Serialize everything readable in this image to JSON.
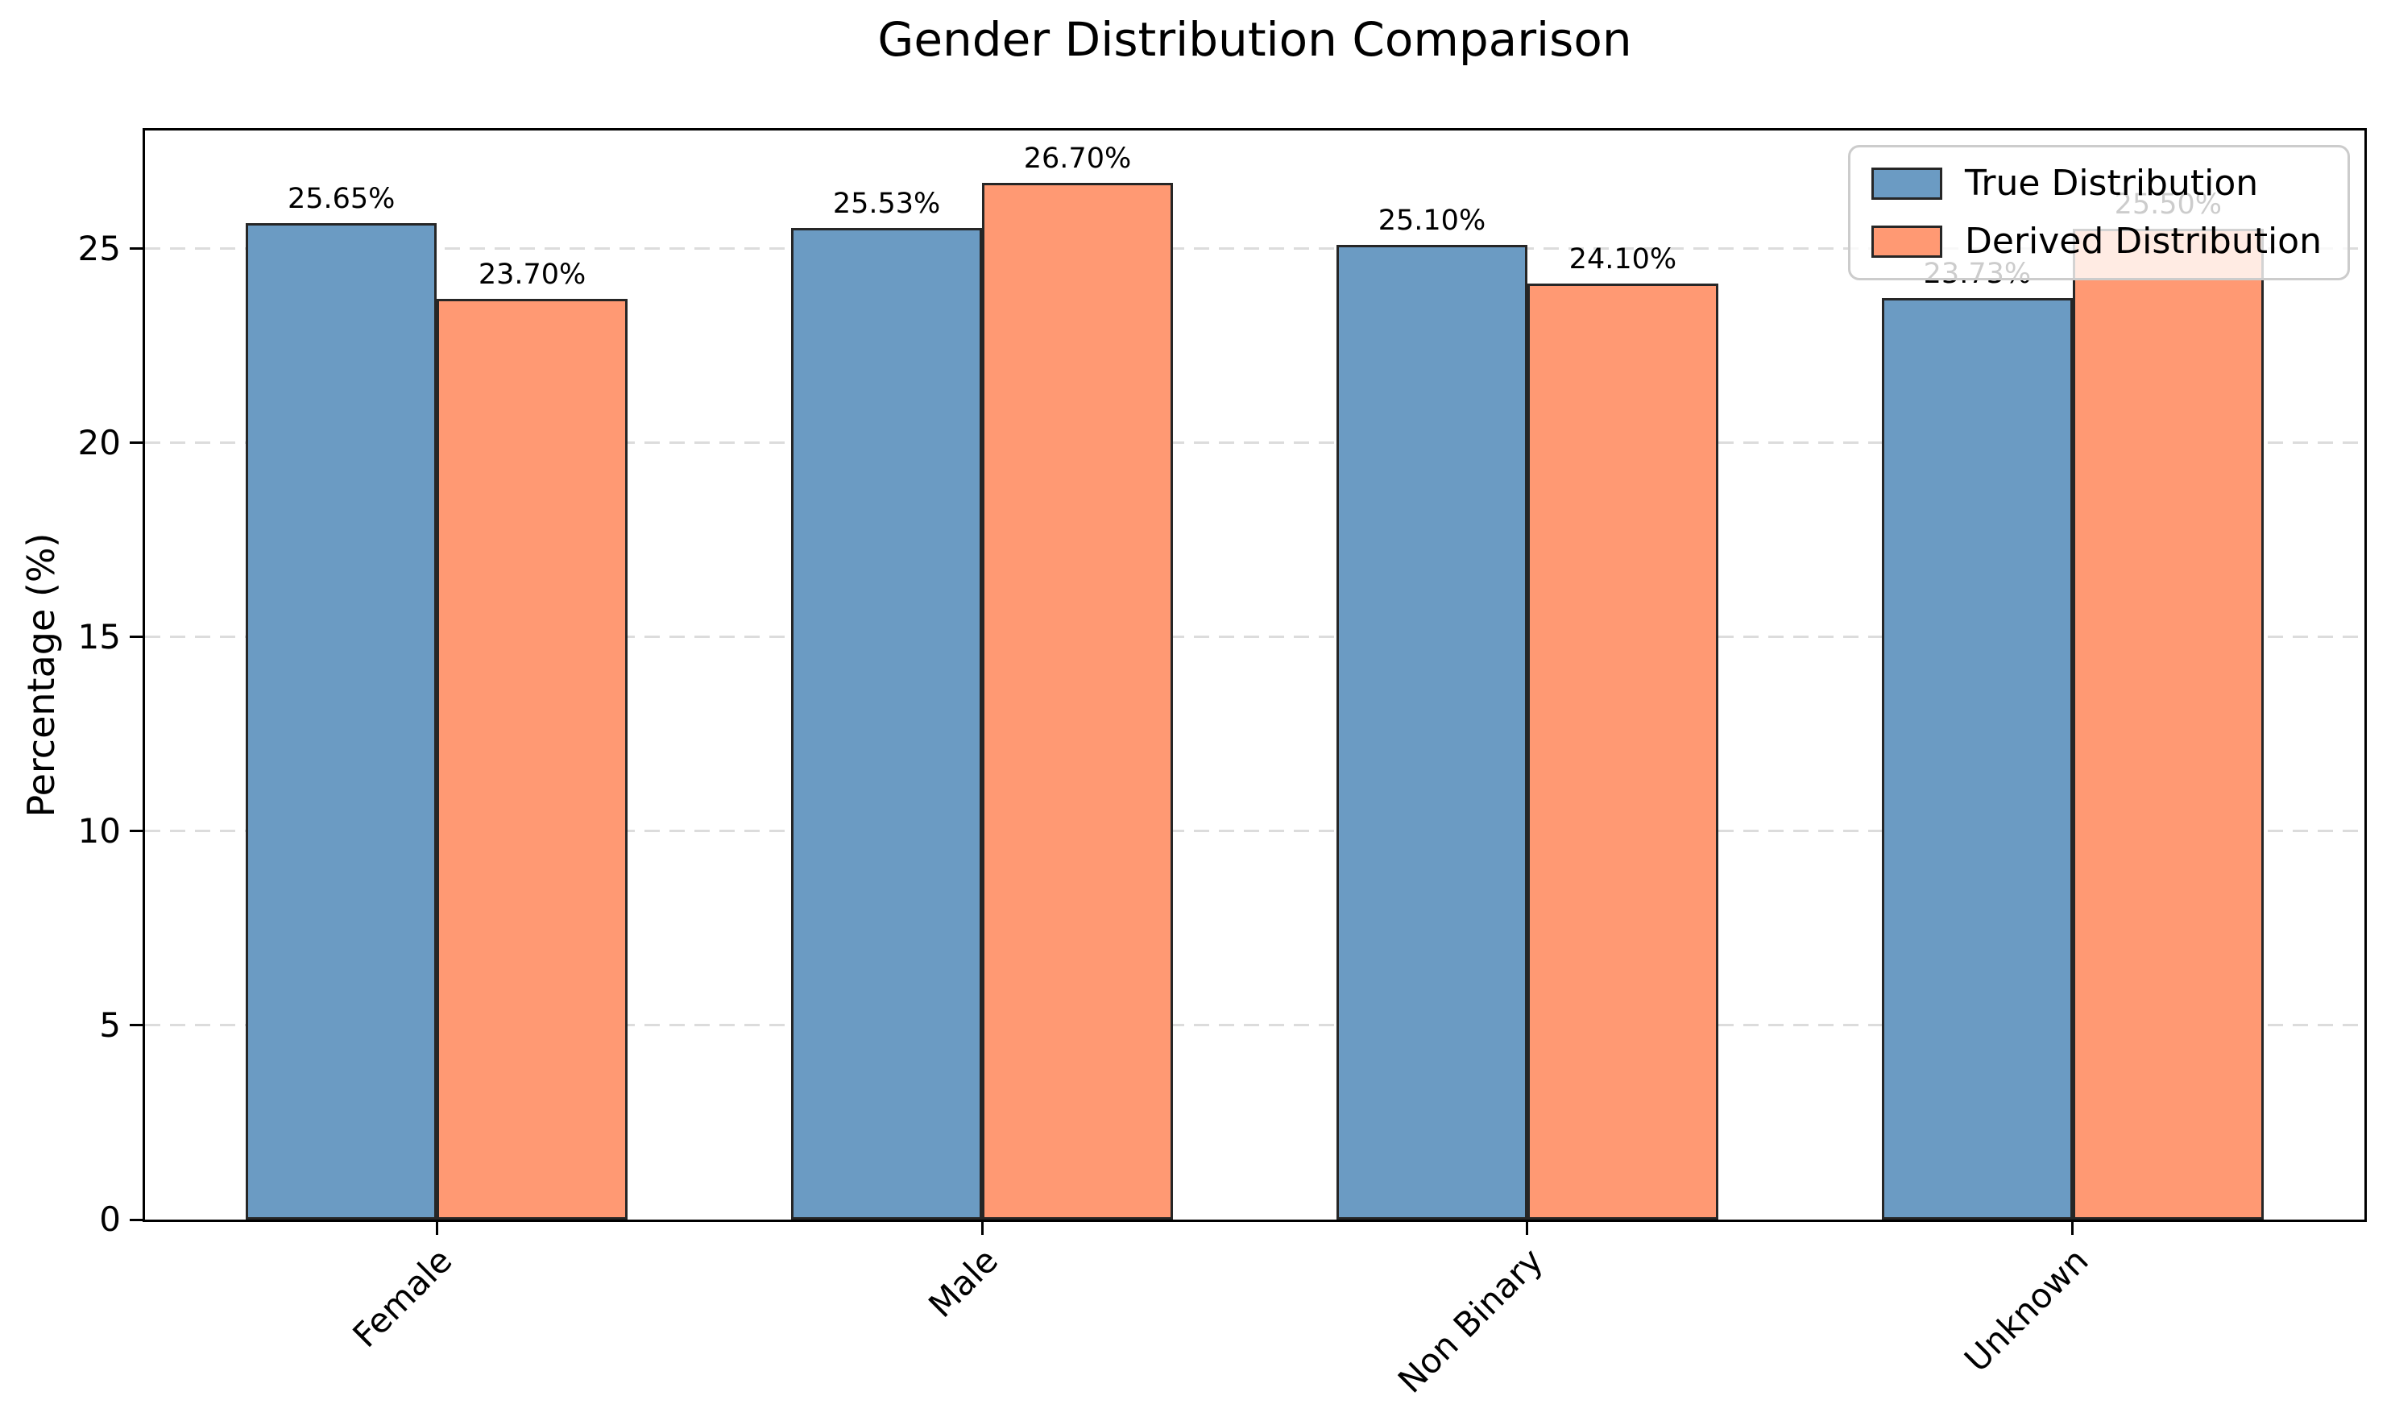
{
  "title": "Gender Distribution Comparison",
  "chart_data": {
    "type": "bar",
    "title": "Gender Distribution Comparison",
    "categories": [
      "Female",
      "Male",
      "Non Binary",
      "Unknown"
    ],
    "series": [
      {
        "name": "True Distribution",
        "color": "#6B9BC3",
        "values": [
          25.65,
          25.53,
          25.1,
          23.73
        ],
        "bar_labels": [
          "25.65%",
          "25.53%",
          "25.10%",
          "23.73%"
        ]
      },
      {
        "name": "Derived Distribution",
        "color": "#FF9973",
        "values": [
          23.7,
          26.7,
          24.1,
          25.5
        ],
        "bar_labels": [
          "23.70%",
          "26.70%",
          "24.10%",
          "25.50%"
        ]
      }
    ],
    "xlabel": "",
    "ylabel": "Percentage (%)",
    "yticks": [
      0,
      5,
      10,
      15,
      20,
      25
    ],
    "ylim": [
      0,
      28.04
    ],
    "grid": "horizontal dashed",
    "grid_color": "#DCDCDC",
    "bar_edge_color": "#262626",
    "legend": {
      "position": "upper right",
      "entries": [
        "True Distribution",
        "Derived Distribution"
      ]
    }
  }
}
